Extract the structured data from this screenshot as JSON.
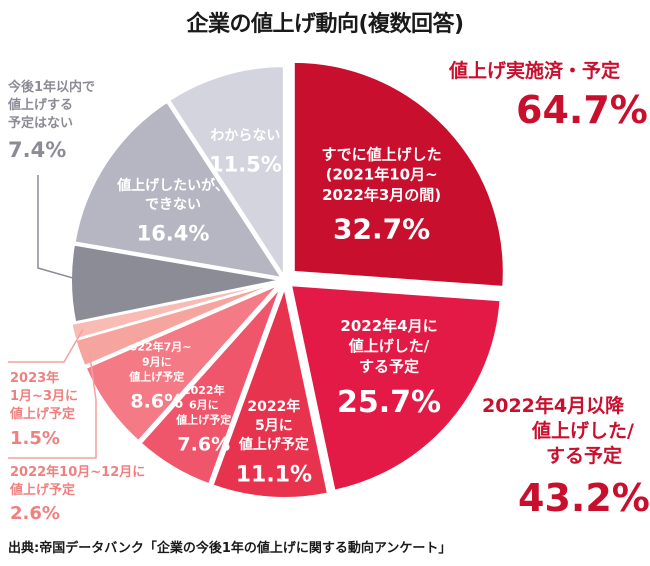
{
  "title": "企業の値上げ動向(複数回答)",
  "source": "出典:帝国データバンク「企業の今後1年の値上げに関する動向アンケート」",
  "colors": {
    "red_dark": "#c8102e",
    "red": "#e21a45",
    "red_mid": "#e8334f",
    "red_light": "#f0566b",
    "pink": "#f47a85",
    "pink_light": "#f6a49e",
    "gray_dark": "#8c8c96",
    "gray": "#b6b6c2",
    "gray_light": "#d4d4de"
  },
  "annotations": {
    "implemented_title": "値上げ実施済・予定",
    "implemented_value": "64.7%",
    "after_april_title_1": "2022年4月以降",
    "after_april_title_2": "値上げした/",
    "after_april_title_3": "する予定",
    "after_april_value": "43.2%",
    "no_plan_line1": "今後1年以内で",
    "no_plan_line2": "値上げする",
    "no_plan_line3": "予定はない",
    "no_plan_value": "7.4%",
    "q2023_line1": "2023年",
    "q2023_line2": "1月~3月に",
    "q2023_line3": "値上げ予定",
    "q2023_value": "1.5%",
    "oct_dec_line1": "2022年10月~12月に",
    "oct_dec_line2": "値上げ予定",
    "oct_dec_value": "2.6%"
  },
  "chart_data": {
    "type": "pie",
    "title": "企業の値上げ動向(複数回答)",
    "slices": [
      {
        "labels": [
          "すでに値上げした",
          "(2021年10月~",
          "2022年3月の間)"
        ],
        "value": 32.7,
        "value_label": "32.7%",
        "color": "#c8102e"
      },
      {
        "labels": [
          "2022年4月に",
          "値上げした/",
          "する予定"
        ],
        "value": 25.7,
        "value_label": "25.7%",
        "color": "#e21a45"
      },
      {
        "labels": [
          "2022年",
          "5月に",
          "値上げ予定"
        ],
        "value": 11.1,
        "value_label": "11.1%",
        "color": "#e8334f"
      },
      {
        "labels": [
          "2022年",
          "6月に",
          "値上げ予定"
        ],
        "value": 7.6,
        "value_label": "7.6%",
        "color": "#f0566b"
      },
      {
        "labels": [
          "2022年7月~",
          "9月に",
          "値上げ予定"
        ],
        "value": 8.6,
        "value_label": "8.6%",
        "color": "#f47a85"
      },
      {
        "labels": [],
        "value": 2.6,
        "value_label": "",
        "color": "#f6a49e"
      },
      {
        "labels": [],
        "value": 1.5,
        "value_label": "",
        "color": "#f8bcb4"
      },
      {
        "labels": [],
        "value": 7.4,
        "value_label": "",
        "color": "#8c8c96"
      },
      {
        "labels": [
          "値上げしたいが、",
          "できない"
        ],
        "value": 16.4,
        "value_label": "16.4%",
        "color": "#b6b6c2"
      },
      {
        "labels": [
          "わからない"
        ],
        "value": 11.5,
        "value_label": "11.5%",
        "color": "#d4d4de"
      }
    ]
  }
}
